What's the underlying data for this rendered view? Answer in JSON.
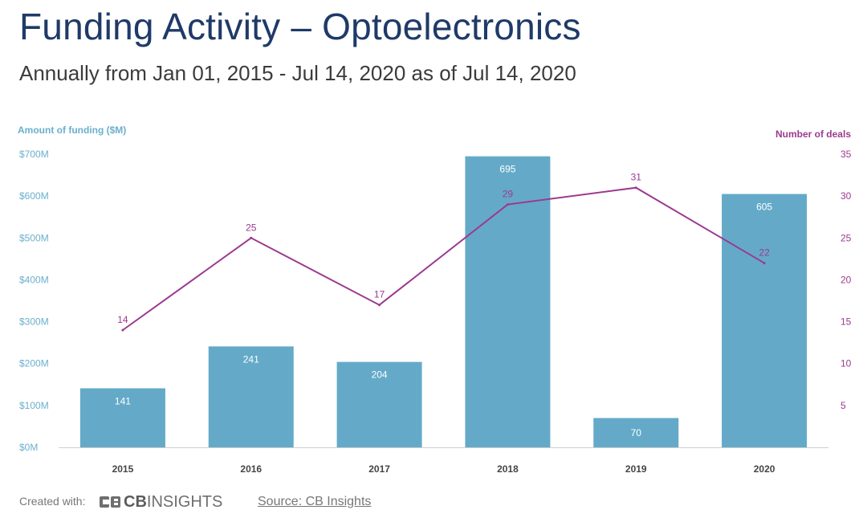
{
  "header": {
    "title": "Funding Activity – Optoelectronics",
    "subtitle": "Annually from Jan 01, 2015 - Jul 14, 2020 as of Jul 14, 2020"
  },
  "chart_data": {
    "type": "bar",
    "categories": [
      "2015",
      "2016",
      "2017",
      "2018",
      "2019",
      "2020"
    ],
    "series": [
      {
        "name": "Amount of funding ($M)",
        "type": "bar",
        "axis": "left",
        "values": [
          141,
          241,
          204,
          695,
          70,
          605
        ],
        "color": "#64aac8"
      },
      {
        "name": "Number of deals",
        "type": "line",
        "axis": "right",
        "values": [
          14,
          25,
          17,
          29,
          31,
          22
        ],
        "color": "#9b3a8f"
      }
    ],
    "y_left": {
      "label": "Amount of funding ($M)",
      "ylim": [
        0,
        700
      ],
      "ticks": [
        0,
        100,
        200,
        300,
        400,
        500,
        600,
        700
      ],
      "tick_labels": [
        "$0M",
        "$100M",
        "$200M",
        "$300M",
        "$400M",
        "$500M",
        "$600M",
        "$700M"
      ],
      "color": "#6ab0cc"
    },
    "y_right": {
      "label": "Number of deals",
      "ylim": [
        0,
        35
      ],
      "ticks": [
        5,
        10,
        15,
        20,
        25,
        30,
        35
      ],
      "tick_labels": [
        "5",
        "10",
        "15",
        "20",
        "25",
        "30",
        "35"
      ],
      "color": "#9b3a8f"
    },
    "grid": false
  },
  "footer": {
    "created_with": "Created with:",
    "logo_text_bold": "CB",
    "logo_text": "INSIGHTS",
    "source": "Source: CB Insights"
  }
}
